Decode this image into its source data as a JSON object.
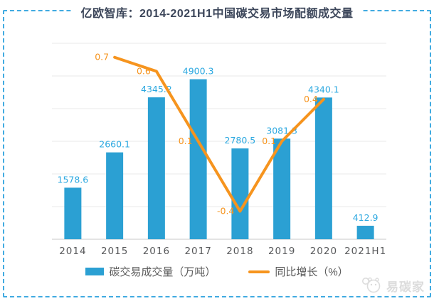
{
  "title": "亿欧智库：2014-2021H1中国碳交易市场配额成交量",
  "watermark": {
    "text": "易碳家"
  },
  "colors": {
    "bar": "#2ba0d3",
    "bar_label": "#2ca8e0",
    "line": "#f6941e",
    "line_label": "#f6941e",
    "title": "#3c465a",
    "axis_text": "#58595b",
    "grid": "#e9e9e9",
    "axis_line": "#c9c9c9",
    "frame": "#41abe1",
    "watermark": "#dcdcdc"
  },
  "chart_data": {
    "type": "bar",
    "categories": [
      "2014",
      "2015",
      "2016",
      "2017",
      "2018",
      "2019",
      "2020",
      "2021H1"
    ],
    "series": [
      {
        "name": "碳交易成交量（万吨）",
        "type": "bar",
        "values": [
          1578.6,
          2660.1,
          4345.2,
          4900.3,
          2780.5,
          3081.3,
          4340.1,
          412.9
        ]
      },
      {
        "name": "同比增长（%）",
        "type": "line",
        "values": [
          null,
          0.7,
          0.6,
          0.1,
          -0.4,
          0.1,
          0.4,
          null
        ]
      }
    ],
    "title": "亿欧智库：2014-2021H1中国碳交易市场配额成交量",
    "xlabel": "",
    "ylabel": "",
    "value_axis": {
      "min": 0,
      "max": 6000,
      "grid_interval": 1000,
      "tick_labels_visible": false
    },
    "percent_axis": {
      "min": -0.6,
      "max": 0.8,
      "tick_labels_visible": false
    },
    "grid": true,
    "legend_position": "bottom",
    "data_labels_visible": true
  }
}
